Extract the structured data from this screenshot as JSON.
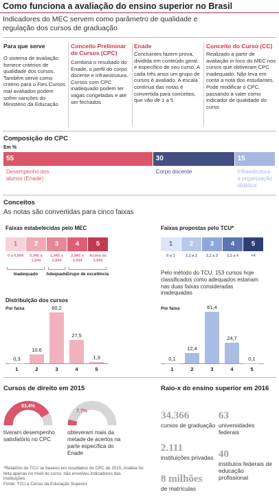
{
  "header": {
    "title": "Como funciona a avaliação do ensino superior no Brasil",
    "subtitle": "Indicadores do MEC servem como parâmetro de qualidade e regulação dos cursos de graduação"
  },
  "columns": [
    {
      "heading": "Para que serve",
      "text": "O sistema de avaliação fornece critérios de qualidade dos cursos. Também serve como critério para o Fies.Cursos mal avaliados podem sofrer sanções do Ministério da Educação"
    },
    {
      "heading": "Conceito Preliminar de Cursos (CPC)",
      "text": "Combina o resultado do Enade, o perfil do corpo docente e infraestrutura. Cursos com CPC inadequado podem ter vagas congeladas e até ser fechados"
    },
    {
      "heading": "Enade",
      "text": "Concluintes fazem prova, dividida em conteúdo geral e específico de seu curso. A cada três anos um grupo de cursos é avaliado. A escala contínua das notas é convertida para conceitos, que vão de 1 a 5"
    },
    {
      "heading": "Conceito do Curso (CC)",
      "text": "Realizado a partir de avaliação in loco do MEC nos cursos que obtiveram CPC inadequado. Não leva em conta a nota dos estudantes. Pode modificar o CPC, passando a valer como indicador de qualidade do curso"
    }
  ],
  "cpc": {
    "title": "Composição do CPC",
    "unit": "Em %",
    "segments": [
      {
        "label": "Desempenho dos alunos (Enade)",
        "value": 55,
        "color": "#d9566b"
      },
      {
        "label": "Corpo docente",
        "value": 30,
        "color": "#434f82"
      },
      {
        "label": "Infraestrutura e organização didática",
        "value": 15,
        "color": "#a7b7df"
      }
    ]
  },
  "conceitos": {
    "title": "Conceitos",
    "subtitle": "As notas são convertidas para cinco faixas",
    "mec": {
      "title": "Faixas estabelecidas pelo MEC",
      "range_color": "#d46a7e",
      "bands": [
        {
          "label": "1",
          "range": "0 a 0,944",
          "color": "#f6d3d9"
        },
        {
          "label": "2",
          "range": "0,945 a 1,944",
          "color": "#f0aab5"
        },
        {
          "label": "3",
          "range": "1,945 a 2,944",
          "color": "#e68798"
        },
        {
          "label": "4",
          "range": "2,945 a 3,944",
          "color": "#dc5f73"
        },
        {
          "label": "5",
          "range": "Acima de 3,945",
          "color": "#c23a50"
        }
      ],
      "groups": [
        "Inadequado",
        "Adequado",
        "Grupo de excelência"
      ]
    },
    "tcu": {
      "title": "Faixas propostas pelo TCU*",
      "range_color": "#5b6fa8",
      "bands": [
        {
          "label": "1",
          "range": "0 a 1",
          "color": "#dde6f5"
        },
        {
          "label": "2",
          "range": "1,1 a 2",
          "color": "#b7c8ea"
        },
        {
          "label": "3",
          "range": "2,1 a 3",
          "color": "#8fa7d8"
        },
        {
          "label": "4",
          "range": "3,1 a 4",
          "color": "#5d74b0"
        },
        {
          "label": "5",
          "range": "+4",
          "color": "#2e3f75"
        }
      ],
      "note": "Pelo método do TCU, 153 cursos hoje classificados como adequados estariam nas duas faixas consideradas inadequadas"
    }
  },
  "distribution": {
    "title": "Distribuição dos cursos",
    "charts": [
      {
        "subtitle": "Por faixa",
        "categories": [
          "1",
          "2",
          "3",
          "4",
          "5"
        ],
        "values": [
          0.3,
          10.6,
          60.2,
          27.5,
          1.3
        ],
        "value_labels": [
          "0,3",
          "10,6",
          "60,2",
          "27,5",
          "1,3"
        ],
        "color": "#f0b3bd"
      },
      {
        "subtitle": "Por faixa",
        "categories": [
          "1",
          "2",
          "3",
          "4",
          "5"
        ],
        "values": [
          0.1,
          12.4,
          61.4,
          24.7,
          0.1
        ],
        "value_labels": [
          "0,1",
          "12,4",
          "61,4",
          "24,7",
          "0,1"
        ],
        "color": "#a9bde4"
      }
    ]
  },
  "direito": {
    "title": "Cursos de direito em 2015",
    "color": "#d9566b",
    "track_color": "#d6d6d6",
    "items": [
      {
        "value": 83.4,
        "value_label": "83,4%",
        "text": "tiveram desempenho satisfatório no CPC"
      },
      {
        "value": 7.7,
        "value_label": "7,7%",
        "text": "obteveram mais da metade de acertos na parte específica do Enade"
      }
    ]
  },
  "raiox": {
    "title": "Raio-x do ensino superior em 2016",
    "stats": [
      {
        "number": "34.366",
        "text": "cursos de graduação"
      },
      {
        "number": "2.111",
        "text": "instituições privadas"
      },
      {
        "number": "8 milhões",
        "text": "de matrículas"
      },
      {
        "number": "63",
        "text": "universidades federais"
      },
      {
        "number": "40",
        "text": "institutos federais de educação profissional"
      }
    ]
  },
  "footnote": {
    "note": "*Relatório do TCU se baseou em resultados do CPC de 2015. Análise foi feita apenas no nível do curso, não envolveu indicadores das instituições.",
    "source": "Fonte: TCU e Censo da Educação Superior"
  }
}
